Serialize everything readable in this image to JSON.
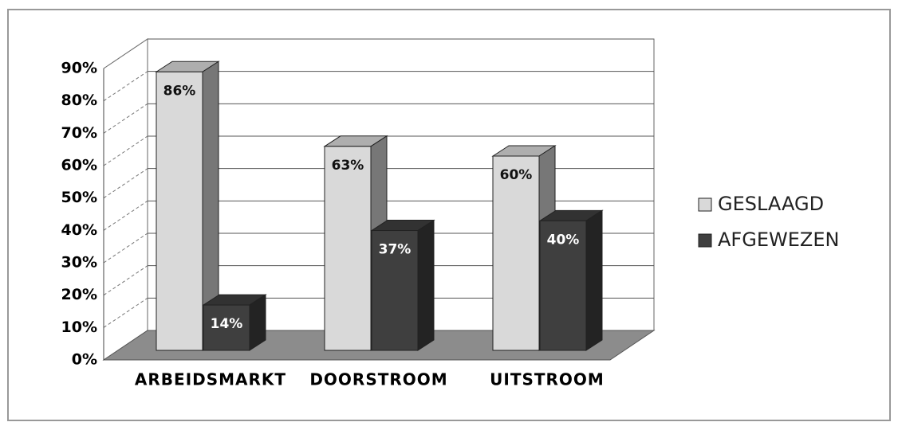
{
  "chart_data": {
    "type": "bar3d",
    "categories": [
      "ARBEIDSMARKT",
      "DOORSTROOM",
      "UITSTROOM"
    ],
    "series": [
      {
        "name": "GESLAAGD",
        "color": "#d9d9d9",
        "values": [
          86,
          63,
          60
        ],
        "value_labels": [
          "86%",
          "63%",
          "60%"
        ]
      },
      {
        "name": "AFGEWEZEN",
        "color": "#3f3f3f",
        "values": [
          14,
          37,
          40
        ],
        "value_labels": [
          "14%",
          "37%",
          "40%"
        ]
      }
    ],
    "ylim": [
      0,
      90
    ],
    "yticks": [
      {
        "value": 0,
        "label": "0%"
      },
      {
        "value": 10,
        "label": "10%"
      },
      {
        "value": 20,
        "label": "20%"
      },
      {
        "value": 30,
        "label": "30%"
      },
      {
        "value": 40,
        "label": "40%"
      },
      {
        "value": 50,
        "label": "50%"
      },
      {
        "value": 60,
        "label": "60%"
      },
      {
        "value": 70,
        "label": "70%"
      },
      {
        "value": 80,
        "label": "80%"
      },
      {
        "value": 90,
        "label": "90%"
      }
    ],
    "grid": true,
    "legend": "right"
  }
}
